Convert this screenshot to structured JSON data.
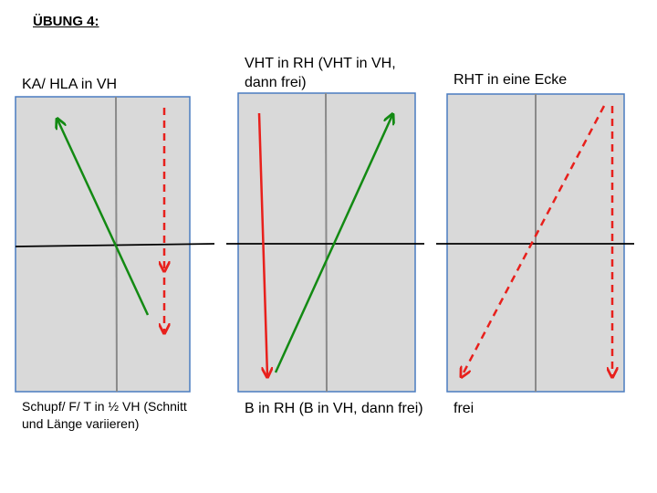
{
  "title": "ÜBUNG 4:",
  "colors": {
    "field": "#d9d9d9",
    "field_border": "#4a7cc0",
    "center_line": "#8a8a8a",
    "net": "#000000",
    "green_arrow": "#138a13",
    "red_arrow": "#e8201c"
  },
  "panels": [
    {
      "top_label": "KA/ HLA in VH",
      "bottom_label": "Schupf/ F/ T in ½ VH (Schnitt und Länge variieren)"
    },
    {
      "top_label": "VHT in RH (VHT in VH, dann frei)",
      "bottom_label": "B in RH (B in VH, dann frei)"
    },
    {
      "top_label": "RHT in eine Ecke",
      "bottom_label": "frei"
    }
  ]
}
